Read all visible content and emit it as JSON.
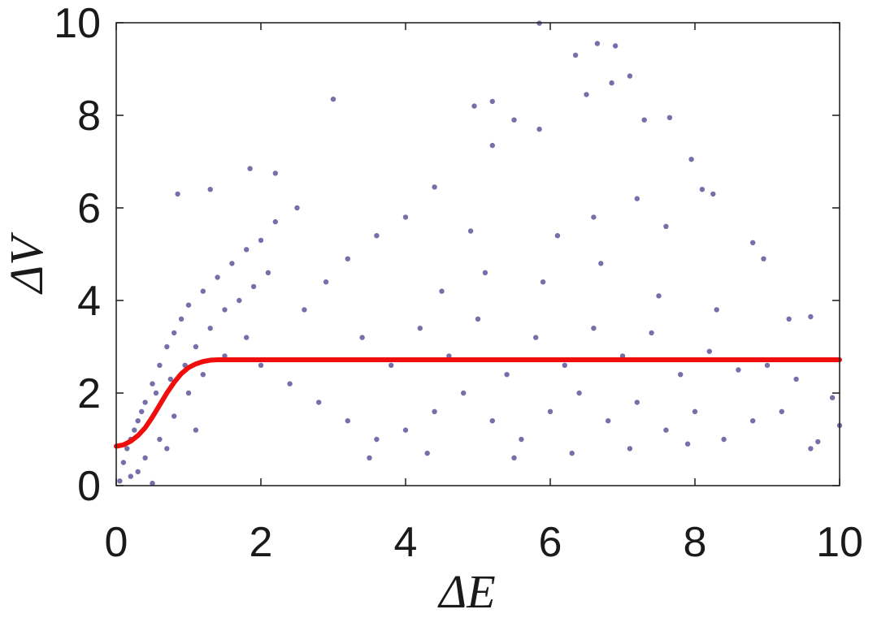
{
  "chart_data": {
    "type": "scatter",
    "xlabel": "ΔE",
    "ylabel": "ΔV",
    "xlim": [
      0,
      10
    ],
    "ylim": [
      0,
      10
    ],
    "xticks": [
      "0",
      "2",
      "4",
      "6",
      "8",
      "10"
    ],
    "yticks": [
      "0",
      "2",
      "4",
      "6",
      "8",
      "10"
    ],
    "grid": false,
    "legend": "none",
    "series": [
      {
        "kind": "scatter",
        "color": "#7471aa",
        "points": [
          [
            0.1,
            0.5
          ],
          [
            0.2,
            1.0
          ],
          [
            0.3,
            1.4
          ],
          [
            0.4,
            1.8
          ],
          [
            0.5,
            2.2
          ],
          [
            0.6,
            2.6
          ],
          [
            0.7,
            3.0
          ],
          [
            0.8,
            3.3
          ],
          [
            0.9,
            3.6
          ],
          [
            1.0,
            3.9
          ],
          [
            1.2,
            4.2
          ],
          [
            1.4,
            4.5
          ],
          [
            1.6,
            4.8
          ],
          [
            1.8,
            5.1
          ],
          [
            2.0,
            5.3
          ],
          [
            2.2,
            5.7
          ],
          [
            2.5,
            6.0
          ],
          [
            0.85,
            6.3
          ],
          [
            1.3,
            6.4
          ],
          [
            1.85,
            6.85
          ],
          [
            2.2,
            6.75
          ],
          [
            3.0,
            8.35
          ],
          [
            0.2,
            0.2
          ],
          [
            0.4,
            0.6
          ],
          [
            0.6,
            1.0
          ],
          [
            0.8,
            1.5
          ],
          [
            1.0,
            2.0
          ],
          [
            1.2,
            2.4
          ],
          [
            1.5,
            2.8
          ],
          [
            1.8,
            3.2
          ],
          [
            2.0,
            2.6
          ],
          [
            2.4,
            2.2
          ],
          [
            2.8,
            1.8
          ],
          [
            3.2,
            1.4
          ],
          [
            3.6,
            1.0
          ],
          [
            4.0,
            1.2
          ],
          [
            4.4,
            1.6
          ],
          [
            4.8,
            2.0
          ],
          [
            5.2,
            1.4
          ],
          [
            5.6,
            1.0
          ],
          [
            6.0,
            1.6
          ],
          [
            6.4,
            2.0
          ],
          [
            6.8,
            1.4
          ],
          [
            7.2,
            1.8
          ],
          [
            7.6,
            1.2
          ],
          [
            8.0,
            1.6
          ],
          [
            8.4,
            1.0
          ],
          [
            8.8,
            1.4
          ],
          [
            9.2,
            1.6
          ],
          [
            9.6,
            0.8
          ],
          [
            10.0,
            1.3
          ],
          [
            9.7,
            0.95
          ],
          [
            9.9,
            1.9
          ],
          [
            9.6,
            3.65
          ],
          [
            9.3,
            3.6
          ],
          [
            8.95,
            4.9
          ],
          [
            8.8,
            5.25
          ],
          [
            8.25,
            6.3
          ],
          [
            8.1,
            6.4
          ],
          [
            7.95,
            7.05
          ],
          [
            7.65,
            7.95
          ],
          [
            7.3,
            7.9
          ],
          [
            7.1,
            8.85
          ],
          [
            6.9,
            9.5
          ],
          [
            6.65,
            9.55
          ],
          [
            6.85,
            8.7
          ],
          [
            6.5,
            8.45
          ],
          [
            6.35,
            9.3
          ],
          [
            5.85,
            9.99
          ],
          [
            5.85,
            7.7
          ],
          [
            5.5,
            7.9
          ],
          [
            5.2,
            8.3
          ],
          [
            4.95,
            8.2
          ],
          [
            5.2,
            7.35
          ],
          [
            4.4,
            6.45
          ],
          [
            4.0,
            5.8
          ],
          [
            3.6,
            5.4
          ],
          [
            3.2,
            4.9
          ],
          [
            2.9,
            4.4
          ],
          [
            2.6,
            3.8
          ],
          [
            3.4,
            3.2
          ],
          [
            3.8,
            2.6
          ],
          [
            4.2,
            3.4
          ],
          [
            4.6,
            2.8
          ],
          [
            5.0,
            3.6
          ],
          [
            5.4,
            2.4
          ],
          [
            5.8,
            3.2
          ],
          [
            6.2,
            2.6
          ],
          [
            6.6,
            3.4
          ],
          [
            7.0,
            2.8
          ],
          [
            7.4,
            3.3
          ],
          [
            7.8,
            2.4
          ],
          [
            8.2,
            2.9
          ],
          [
            8.6,
            2.5
          ],
          [
            9.0,
            2.6
          ],
          [
            9.4,
            2.3
          ],
          [
            4.5,
            4.2
          ],
          [
            5.1,
            4.6
          ],
          [
            5.9,
            4.4
          ],
          [
            6.7,
            4.8
          ],
          [
            7.5,
            4.1
          ],
          [
            8.3,
            3.8
          ],
          [
            6.1,
            5.4
          ],
          [
            6.6,
            5.8
          ],
          [
            7.2,
            6.2
          ],
          [
            7.6,
            5.6
          ],
          [
            4.9,
            5.5
          ],
          [
            3.5,
            0.6
          ],
          [
            4.3,
            0.7
          ],
          [
            5.5,
            0.6
          ],
          [
            6.3,
            0.7
          ],
          [
            7.1,
            0.8
          ],
          [
            7.9,
            0.9
          ],
          [
            0.05,
            0.1
          ],
          [
            0.15,
            0.8
          ],
          [
            0.25,
            1.2
          ],
          [
            0.35,
            1.6
          ],
          [
            0.55,
            2.0
          ],
          [
            0.75,
            2.3
          ],
          [
            0.95,
            2.6
          ],
          [
            1.1,
            3.0
          ],
          [
            1.3,
            3.4
          ],
          [
            1.5,
            3.8
          ],
          [
            1.7,
            4.0
          ],
          [
            1.9,
            4.3
          ],
          [
            2.1,
            4.6
          ],
          [
            0.5,
            0.05
          ],
          [
            0.3,
            0.3
          ],
          [
            0.7,
            0.8
          ],
          [
            1.1,
            1.2
          ]
        ]
      },
      {
        "kind": "line",
        "color": "#ef0d0d",
        "x": [
          0,
          0.1,
          0.2,
          0.3,
          0.4,
          0.5,
          0.6,
          0.7,
          0.8,
          0.9,
          1.0,
          1.1,
          1.2,
          1.3,
          1.4,
          1.5,
          1.6,
          1.8,
          2,
          3,
          4,
          5,
          6,
          7,
          8,
          9,
          10
        ],
        "y": [
          0.85,
          0.88,
          0.96,
          1.08,
          1.25,
          1.48,
          1.74,
          2.0,
          2.23,
          2.42,
          2.55,
          2.63,
          2.68,
          2.71,
          2.72,
          2.72,
          2.72,
          2.72,
          2.72,
          2.72,
          2.72,
          2.72,
          2.72,
          2.72,
          2.72,
          2.72,
          2.72
        ]
      }
    ]
  }
}
